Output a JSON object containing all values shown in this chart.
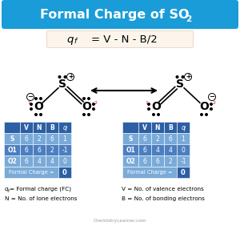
{
  "title_text": "Formal Charge of SO",
  "title_sub": "2",
  "title_bg": "#1a9cd8",
  "formula_bg": "#fdf5ec",
  "table_header_bg": "#2c5fa3",
  "table_row_bg_dark": "#4a7fc1",
  "table_row_bg_light": "#7aaad8",
  "table1": {
    "rows": [
      [
        "S",
        "6",
        "2",
        "6",
        "1"
      ],
      [
        "O1",
        "6",
        "6",
        "2",
        "-1"
      ],
      [
        "O2",
        "6",
        "4",
        "4",
        "0"
      ]
    ],
    "formal_charge": "0"
  },
  "table2": {
    "rows": [
      [
        "S",
        "6",
        "2",
        "6",
        "1"
      ],
      [
        "O1",
        "6",
        "4",
        "4",
        "0"
      ],
      [
        "O2",
        "6",
        "6",
        "2",
        "-1"
      ]
    ],
    "formal_charge": "0"
  },
  "watermark": "ChemistryLearner.com",
  "bg_color": "white"
}
